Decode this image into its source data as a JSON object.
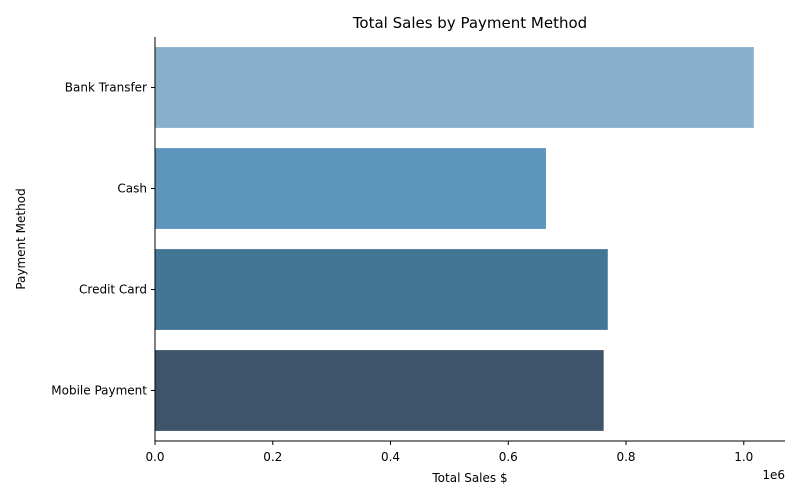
{
  "chart_data": {
    "type": "bar",
    "orientation": "horizontal",
    "title": "Total Sales by Payment Method",
    "xlabel": "Total Sales $",
    "ylabel": "Payment Method",
    "x_offset_label": "1e6",
    "xlim": [
      0,
      1.07
    ],
    "x_ticks": [
      0.0,
      0.2,
      0.4,
      0.6,
      0.8,
      1.0
    ],
    "x_tick_labels": [
      "0.0",
      "0.2",
      "0.4",
      "0.6",
      "0.8",
      "1.0"
    ],
    "categories": [
      "Bank Transfer",
      "Cash",
      "Credit Card",
      "Mobile Payment"
    ],
    "values": [
      1.017,
      0.664,
      0.769,
      0.762
    ],
    "colors": [
      "#89b0cb",
      "#5e95bd",
      "#437595",
      "#3d546b"
    ],
    "grid": false,
    "legend": "none"
  }
}
